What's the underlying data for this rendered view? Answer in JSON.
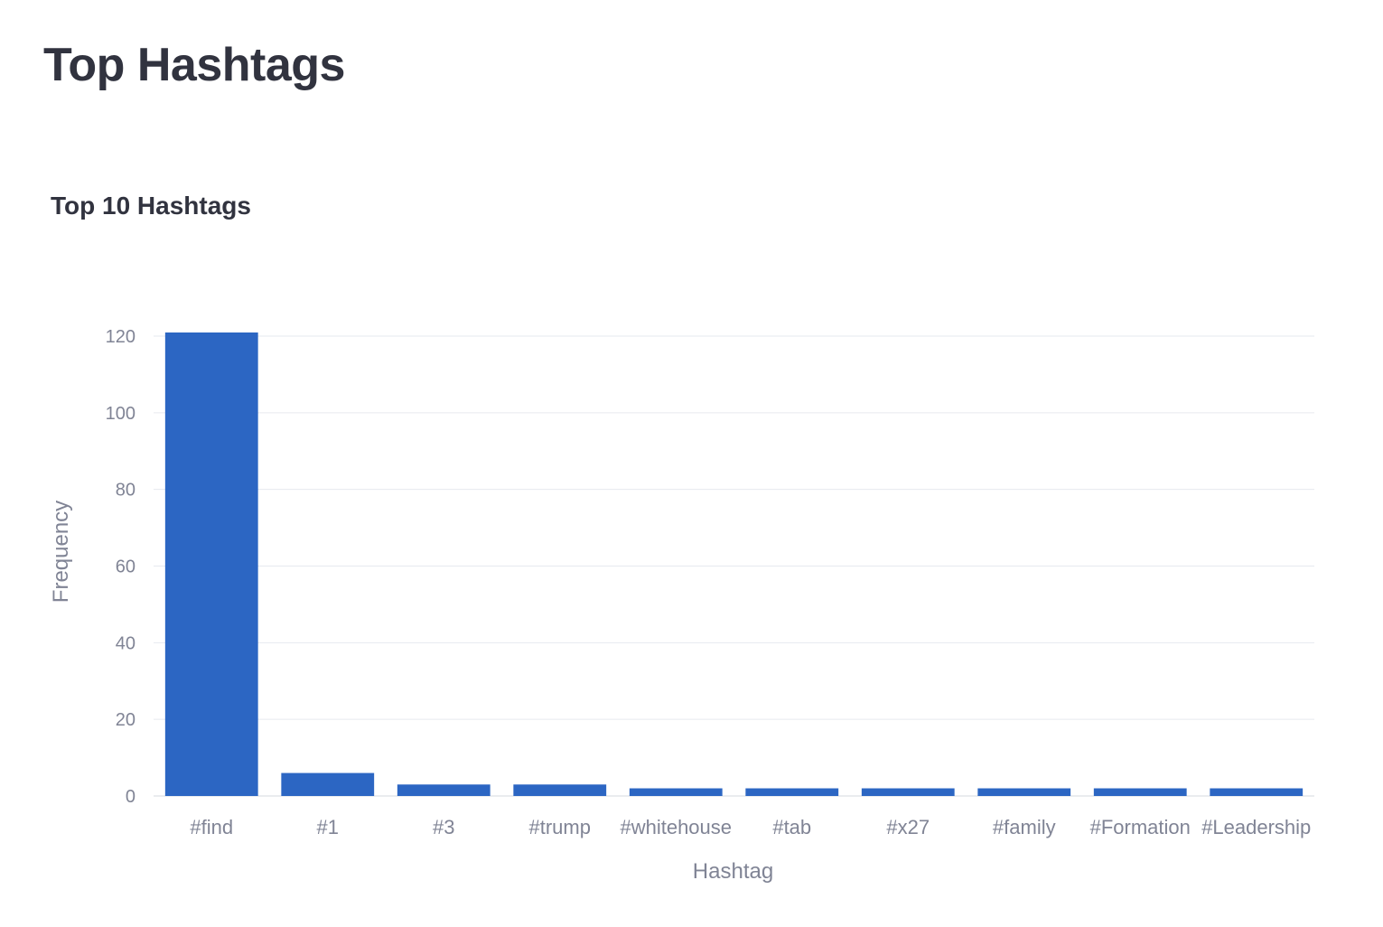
{
  "page": {
    "title": "Top Hashtags"
  },
  "chart_data": {
    "type": "bar",
    "title": "Top 10 Hashtags",
    "xlabel": "Hashtag",
    "ylabel": "Frequency",
    "categories": [
      "#find",
      "#1",
      "#3",
      "#trump",
      "#whitehouse",
      "#tab",
      "#x27",
      "#family",
      "#Formation",
      "#Leadership"
    ],
    "values": [
      121,
      6,
      3,
      3,
      2,
      2,
      2,
      2,
      2,
      2
    ],
    "ylim": [
      0,
      120
    ],
    "yticks": [
      0,
      20,
      40,
      60,
      80,
      100,
      120
    ],
    "grid": true,
    "legend": "none",
    "bar_color": "#2c66c3"
  }
}
